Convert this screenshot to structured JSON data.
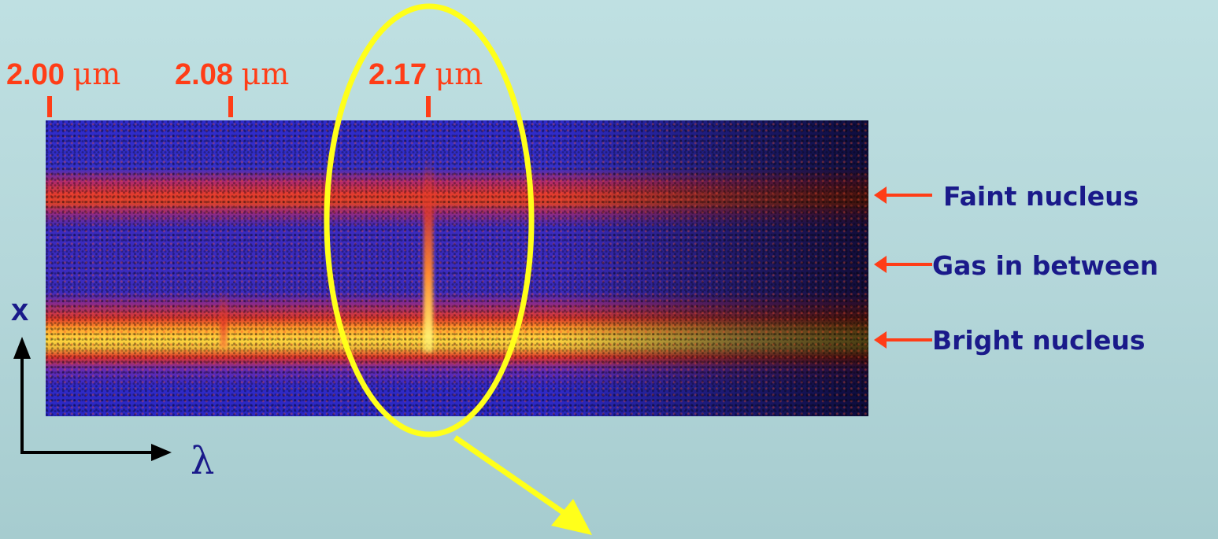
{
  "wavelength_labels": [
    {
      "value": "2.00",
      "unit": "μm"
    },
    {
      "value": "2.08",
      "unit": "μm"
    },
    {
      "value": "2.17",
      "unit": "μm"
    }
  ],
  "annotations": {
    "faint": "Faint nucleus",
    "gas": "Gas in between",
    "bright": "Bright nucleus"
  },
  "axes": {
    "vertical": "x",
    "horizontal": "λ"
  },
  "colors": {
    "label_red": "#ff3d17",
    "text_navy": "#1a1a8a",
    "highlight_yellow": "#ffff1a"
  }
}
